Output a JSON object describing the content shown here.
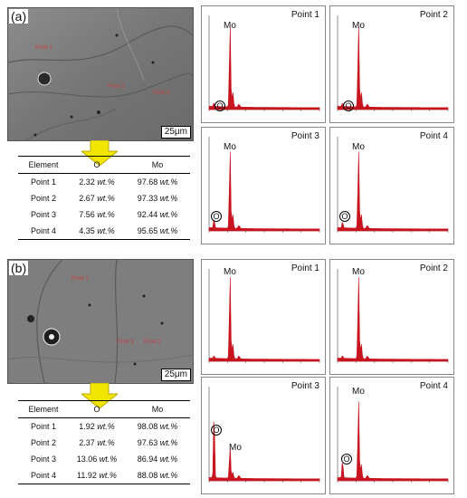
{
  "panel_a": {
    "label": "(a)",
    "scale_bar": "25μm",
    "table": {
      "headers": [
        "Element",
        "O",
        "Mo"
      ],
      "rows": [
        {
          "name": "Point 1",
          "o": "2.32",
          "mo": "97.68"
        },
        {
          "name": "Point 2",
          "o": "2.67",
          "mo": "97.33"
        },
        {
          "name": "Point 3",
          "o": "7.56",
          "mo": "92.44"
        },
        {
          "name": "Point 4",
          "o": "4.35",
          "mo": "95.65"
        }
      ],
      "unit": "wt.%"
    },
    "spectra": [
      {
        "title": "Point 1",
        "mo": "Mo",
        "o": "O"
      },
      {
        "title": "Point 2",
        "mo": "Mo",
        "o": "O"
      },
      {
        "title": "Point 3",
        "mo": "Mo",
        "o": "O"
      },
      {
        "title": "Point 4",
        "mo": "Mo",
        "o": "O"
      }
    ]
  },
  "panel_b": {
    "label": "(b)",
    "scale_bar": "25μm",
    "table": {
      "headers": [
        "Element",
        "O",
        "Mo"
      ],
      "rows": [
        {
          "name": "Point 1",
          "o": "1.92",
          "mo": "98.08"
        },
        {
          "name": "Point 2",
          "o": "2.37",
          "mo": "97.63"
        },
        {
          "name": "Point 3",
          "o": "13.06",
          "mo": "86.94"
        },
        {
          "name": "Point 4",
          "o": "11.92",
          "mo": "88.08"
        }
      ],
      "unit": "wt.%"
    },
    "spectra": [
      {
        "title": "Point 1",
        "mo": "Mo",
        "o": ""
      },
      {
        "title": "Point 2",
        "mo": "Mo",
        "o": ""
      },
      {
        "title": "Point 3",
        "mo": "Mo",
        "o": "O"
      },
      {
        "title": "Point 4",
        "mo": "Mo",
        "o": "O"
      }
    ]
  },
  "colors": {
    "spectrum": "#c8141e",
    "arrow": "#f2e600",
    "arrow_border": "#b8a800"
  }
}
